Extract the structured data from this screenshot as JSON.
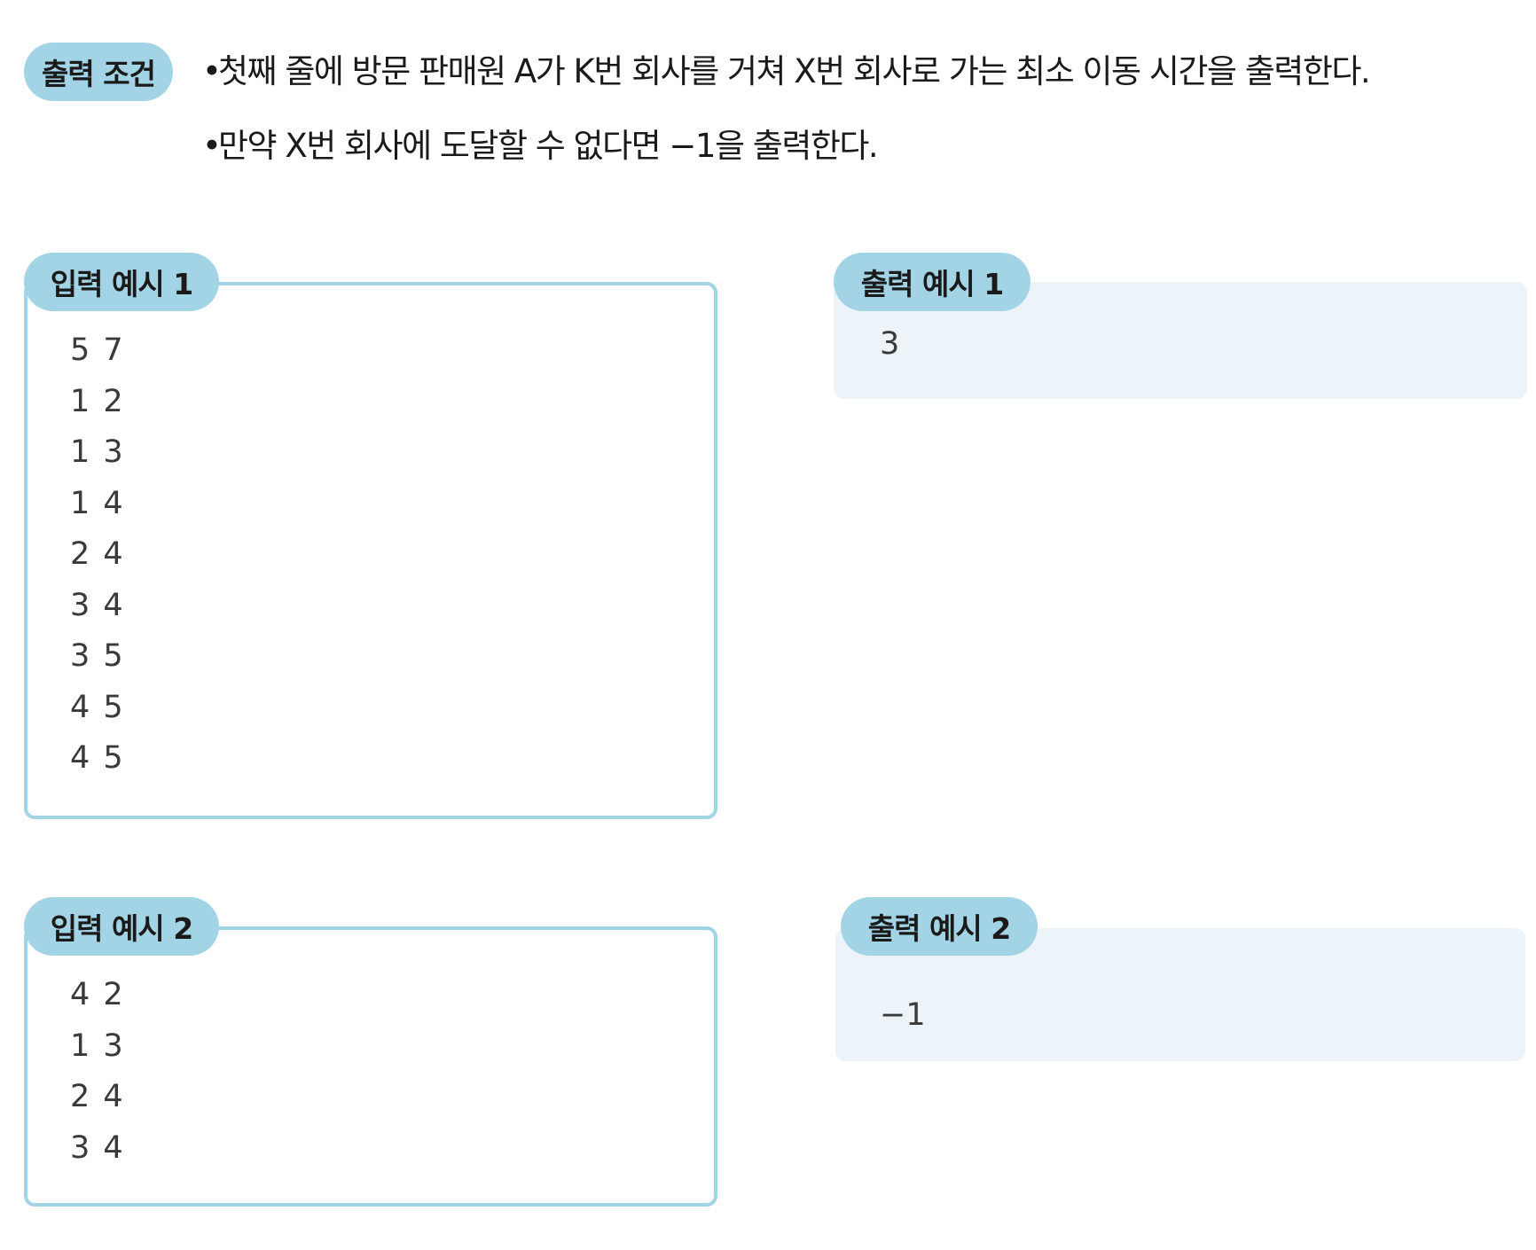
{
  "output_condition": {
    "label": "출력 조건",
    "bullets": [
      "첫째 줄에 방문 판매원 A가 K번 회사를 거쳐 X번 회사로 가는 최소 이동 시간을 출력한다.",
      "만약 X번 회사에 도달할 수 없다면 −1을 출력한다."
    ]
  },
  "examples": [
    {
      "input_label": "입력 예시 1",
      "input_lines": [
        "5 7",
        "1 2",
        "1 3",
        "1 4",
        "2 4",
        "3 4",
        "3 5",
        "4 5",
        "4 5"
      ],
      "output_label": "출력 예시 1",
      "output_lines": [
        "3"
      ]
    },
    {
      "input_label": "입력 예시 2",
      "input_lines": [
        "4 2",
        "1 3",
        "2 4",
        "3 4"
      ],
      "output_label": "출력 예시 2",
      "output_lines": [
        "−1"
      ]
    }
  ]
}
